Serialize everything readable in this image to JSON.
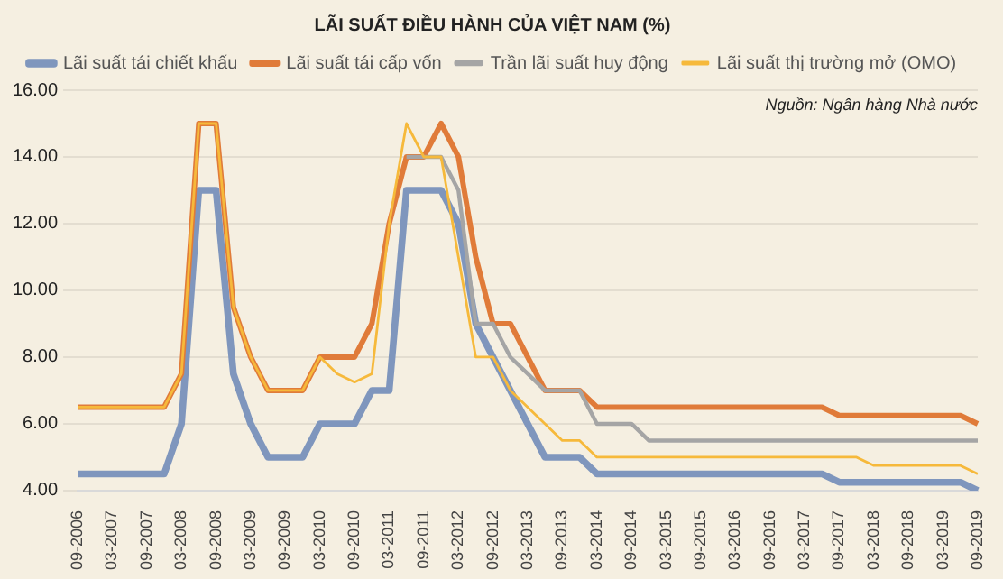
{
  "chart_data": {
    "type": "line",
    "title": "LÃI SUẤT ĐIỀU HÀNH CỦA VIỆT NAM (%)",
    "annotations": [
      "Nguồn: Ngân hàng Nhà nước"
    ],
    "categories": [
      "09-2006",
      null,
      "03-2007",
      null,
      "09-2007",
      null,
      "03-2008",
      null,
      "09-2008",
      null,
      "03-2009",
      null,
      "09-2009",
      null,
      "03-2010",
      null,
      "09-2010",
      null,
      "03-2011",
      null,
      "09-2011",
      null,
      "03-2012",
      null,
      "09-2012",
      null,
      "03-2013",
      null,
      "09-2013",
      null,
      "03-2014",
      null,
      "09-2014",
      null,
      "03-2015",
      null,
      "09-2015",
      null,
      "03-2016",
      null,
      "09-2016",
      null,
      "03-2017",
      null,
      "09-2017",
      null,
      "03-2018",
      null,
      "09-2018",
      null,
      "03-2019",
      null,
      "09-2019"
    ],
    "series": [
      {
        "name": "Lãi suất tái chiết khấu",
        "color": "#7f96bd",
        "values": [
          4.5,
          4.5,
          4.5,
          4.5,
          4.5,
          4.5,
          6,
          13,
          13,
          7.5,
          6,
          5,
          5,
          5,
          6,
          6,
          6,
          7,
          7,
          13,
          13,
          13,
          12,
          9,
          8,
          7,
          6,
          5,
          5,
          5,
          4.5,
          4.5,
          4.5,
          4.5,
          4.5,
          4.5,
          4.5,
          4.5,
          4.5,
          4.5,
          4.5,
          4.5,
          4.5,
          4.5,
          4.25,
          4.25,
          4.25,
          4.25,
          4.25,
          4.25,
          4.25,
          4.25,
          4
        ]
      },
      {
        "name": "Lãi suất tái cấp vốn",
        "color": "#e07b39",
        "values": [
          6.5,
          6.5,
          6.5,
          6.5,
          6.5,
          6.5,
          7.5,
          15,
          15,
          9.5,
          8,
          7,
          7,
          7,
          8,
          8,
          8,
          9,
          12,
          14,
          14,
          15,
          14,
          11,
          9,
          9,
          8,
          7,
          7,
          7,
          6.5,
          6.5,
          6.5,
          6.5,
          6.5,
          6.5,
          6.5,
          6.5,
          6.5,
          6.5,
          6.5,
          6.5,
          6.5,
          6.5,
          6.25,
          6.25,
          6.25,
          6.25,
          6.25,
          6.25,
          6.25,
          6.25,
          6
        ]
      },
      {
        "name": "Trần lãi suất huy động",
        "color": "#a5a5a5",
        "values": [
          null,
          null,
          null,
          null,
          null,
          null,
          null,
          null,
          null,
          null,
          null,
          null,
          null,
          null,
          null,
          null,
          null,
          null,
          null,
          14,
          14,
          14,
          13,
          9,
          9,
          8,
          7.5,
          7,
          7,
          7,
          6,
          6,
          6,
          5.5,
          5.5,
          5.5,
          5.5,
          5.5,
          5.5,
          5.5,
          5.5,
          5.5,
          5.5,
          5.5,
          5.5,
          5.5,
          5.5,
          5.5,
          5.5,
          5.5,
          5.5,
          5.5,
          5.5
        ]
      },
      {
        "name": "Lãi suất thị trường mở (OMO)",
        "color": "#f6b93b",
        "values": [
          6.5,
          6.5,
          6.5,
          6.5,
          6.5,
          6.5,
          7.5,
          15,
          15,
          9.5,
          8,
          7,
          7,
          7,
          8,
          7.5,
          7.25,
          7.5,
          12,
          15,
          14,
          14,
          11,
          8,
          8,
          7,
          6.5,
          6,
          5.5,
          5.5,
          5,
          5,
          5,
          5,
          5,
          5,
          5,
          5,
          5,
          5,
          5,
          5,
          5,
          5,
          5,
          5,
          4.75,
          4.75,
          4.75,
          4.75,
          4.75,
          4.75,
          4.5
        ]
      }
    ],
    "ylim": [
      4,
      16
    ],
    "yticks": [
      {
        "value": 4,
        "label": "4.00"
      },
      {
        "value": 6,
        "label": "6.00"
      },
      {
        "value": 8,
        "label": "8.00"
      },
      {
        "value": 10,
        "label": "10.00"
      },
      {
        "value": 12,
        "label": "12.00"
      },
      {
        "value": 14,
        "label": "14.00"
      },
      {
        "value": 16,
        "label": "16.00"
      }
    ],
    "grid": "y",
    "legend": "top",
    "marker": "none",
    "line_style": "solid"
  }
}
